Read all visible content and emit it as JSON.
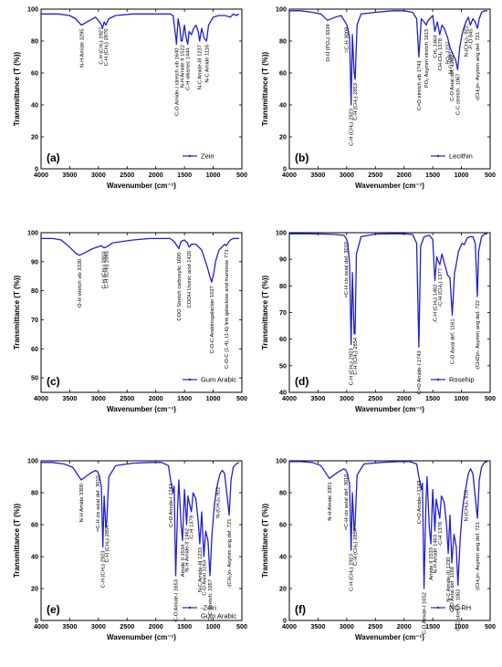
{
  "chart_data": [
    {
      "type": "line",
      "panel_label": "(a)",
      "legend": [
        "Zein"
      ],
      "xlabel": "Wavenumber (cm⁻¹)",
      "ylabel": "Transmittance (T (%))",
      "xlim": [
        4000,
        500
      ],
      "ylim": [
        0,
        100
      ],
      "xticks": [
        4000,
        3500,
        3000,
        2500,
        2000,
        1500,
        1000,
        500
      ],
      "yticks": [
        0,
        20,
        40,
        60,
        80,
        100
      ],
      "series": [
        {
          "name": "Zein",
          "x": [
            4000,
            3700,
            3500,
            3400,
            3295,
            3150,
            3050,
            2960,
            2927,
            2900,
            2870,
            2820,
            2700,
            2400,
            2100,
            1900,
            1750,
            1700,
            1650,
            1640,
            1610,
            1580,
            1560,
            1540,
            1520,
            1500,
            1480,
            1460,
            1444,
            1420,
            1380,
            1340,
            1300,
            1260,
            1237,
            1200,
            1160,
            1116,
            1080,
            1000,
            900,
            800,
            700,
            650,
            600,
            550
          ],
          "y": [
            97,
            97,
            96,
            94,
            90,
            93,
            95,
            91,
            88,
            92,
            90,
            94,
            96,
            97,
            97,
            97,
            97,
            96,
            82,
            78,
            94,
            88,
            80,
            80,
            86,
            90,
            84,
            80,
            78,
            86,
            84,
            88,
            90,
            86,
            80,
            88,
            82,
            80,
            90,
            95,
            96,
            96,
            95,
            97,
            96,
            97
          ]
        }
      ],
      "annotations": [
        {
          "text": "N-H Amide 3295",
          "x": 3295
        },
        {
          "text": "C-H (CH₂) 2927",
          "x": 2960
        },
        {
          "text": "C-H (CH₂) 2870",
          "x": 2870
        },
        {
          "text": "C-O Amide-I stretch vib 1640",
          "x": 1640
        },
        {
          "text": "N-H Amide II 1522",
          "x": 1540
        },
        {
          "text": "C-H alkanes 1444",
          "x": 1444
        },
        {
          "text": "N-C Amide-III 1237",
          "x": 1237
        },
        {
          "text": "N-C Amide 1116",
          "x": 1116
        }
      ]
    },
    {
      "type": "line",
      "panel_label": "(b)",
      "legend": [
        "Lecithin"
      ],
      "xlabel": "Wavenumber (cm⁻¹)",
      "ylabel": "Transmittance (T (%))",
      "xlim": [
        4000,
        500
      ],
      "ylim": [
        0,
        100
      ],
      "xticks": [
        4000,
        3500,
        3000,
        2500,
        2000,
        1500,
        1000,
        500
      ],
      "yticks": [
        0,
        20,
        40,
        60,
        80,
        100
      ],
      "series": [
        {
          "name": "Lecithin",
          "x": [
            4000,
            3800,
            3600,
            3450,
            3334,
            3200,
            3100,
            3009,
            2980,
            2950,
            2923,
            2900,
            2870,
            2853,
            2820,
            2750,
            2500,
            2200,
            2000,
            1850,
            1780,
            1743,
            1700,
            1650,
            1615,
            1580,
            1500,
            1464,
            1420,
            1378,
            1340,
            1300,
            1240,
            1200,
            1150,
            1100,
            1067,
            1030,
            990,
            960,
            922,
            880,
            845,
            800,
            760,
            721,
            690,
            650,
            600,
            550
          ],
          "y": [
            99,
            99,
            98,
            97,
            93,
            95,
            96,
            91,
            88,
            82,
            40,
            84,
            60,
            56,
            90,
            97,
            98,
            99,
            99,
            98,
            94,
            70,
            94,
            92,
            90,
            93,
            96,
            86,
            92,
            84,
            90,
            88,
            82,
            76,
            72,
            68,
            62,
            76,
            84,
            88,
            92,
            95,
            90,
            94,
            92,
            88,
            94,
            98,
            99,
            99
          ]
        }
      ],
      "annotations": [
        {
          "text": "O-H (PO₄) 3334",
          "x": 3334
        },
        {
          "text": "=C-H 3009",
          "x": 3009
        },
        {
          "text": "C-H (CH₂) 2923",
          "x": 2923
        },
        {
          "text": "C-H (CH₂) 2853",
          "x": 2853
        },
        {
          "text": "C=O stretch vib 1743",
          "x": 1743
        },
        {
          "text": "PO₂ Asymm stretch 1615",
          "x": 1615
        },
        {
          "text": "CH₂ 1464",
          "x": 1464
        },
        {
          "text": "CH-CH₃ 1378",
          "x": 1378
        },
        {
          "text": "PO₂ 1237",
          "x": 1240
        },
        {
          "text": "N-C 1195",
          "x": 1195
        },
        {
          "text": "C-O Axial def. 1165",
          "x": 1165
        },
        {
          "text": "C-C stretch. 1067",
          "x": 1067
        },
        {
          "text": "N-(CH₃)₃ 922",
          "x": 922
        },
        {
          "text": "-P-O 845",
          "x": 845
        },
        {
          "text": "-(CH₂)n- Asymm ang def. 721",
          "x": 721
        }
      ]
    },
    {
      "type": "line",
      "panel_label": "(c)",
      "legend": [
        "Gum Arabic"
      ],
      "xlabel": "Wavenumber (cm⁻¹)",
      "ylabel": "Transmittance (T (%))",
      "xlim": [
        4000,
        500
      ],
      "ylim": [
        45,
        100
      ],
      "xticks": [
        4000,
        3500,
        3000,
        2500,
        2000,
        1500,
        1000,
        500
      ],
      "yticks": [
        50,
        60,
        70,
        80,
        90,
        100
      ],
      "series": [
        {
          "name": "Gum Arabic",
          "x": [
            4000,
            3800,
            3650,
            3500,
            3400,
            3330,
            3250,
            3100,
            2950,
            2910,
            2865,
            2750,
            2400,
            2100,
            1900,
            1750,
            1680,
            1600,
            1560,
            1500,
            1450,
            1420,
            1380,
            1300,
            1200,
            1150,
            1100,
            1060,
            1027,
            990,
            960,
            900,
            850,
            800,
            771,
            740,
            700,
            650,
            600,
            550
          ],
          "y": [
            98,
            98,
            97.5,
            95,
            93,
            92.2,
            93,
            94.5,
            95.5,
            94.8,
            95,
            96.5,
            97.5,
            98,
            98,
            98,
            97,
            94.5,
            97,
            97.5,
            96.5,
            95,
            96,
            96,
            94,
            91,
            88,
            85,
            83,
            86,
            90,
            94,
            95,
            96,
            95.5,
            96.5,
            97.5,
            98,
            98,
            98
          ]
        }
      ],
      "annotations": [
        {
          "text": "O-H stretch vib 3330",
          "x": 3330
        },
        {
          "text": "C-H (CH₂) 2910",
          "x": 2910
        },
        {
          "text": "C-H (CH₂) 2865",
          "x": 2865
        },
        {
          "text": "COO Stretch carboxylic 1600",
          "x": 1600
        },
        {
          "text": "COOH Uronic acid 1420",
          "x": 1420
        },
        {
          "text": "C-O-C Arabinogalactan 1027",
          "x": 1027
        },
        {
          "text": "C-O-C (1-4), (1-6) link galactose and mannose 771",
          "x": 771
        }
      ]
    },
    {
      "type": "line",
      "panel_label": "(d)",
      "legend": [
        "Rosehip"
      ],
      "xlabel": "Wavenumber (cm⁻¹)",
      "ylabel": "Transmittance (T (%))",
      "xlim": [
        4000,
        500
      ],
      "ylim": [
        40,
        100
      ],
      "xticks": [
        4000,
        3500,
        3000,
        2500,
        2000,
        1500,
        1000,
        500
      ],
      "yticks": [
        40,
        50,
        60,
        70,
        80,
        90,
        100
      ],
      "series": [
        {
          "name": "Rosehip",
          "x": [
            4000,
            3700,
            3400,
            3200,
            3050,
            3010,
            2980,
            2950,
            2923,
            2900,
            2870,
            2854,
            2830,
            2750,
            2500,
            2200,
            2000,
            1850,
            1780,
            1743,
            1710,
            1650,
            1560,
            1500,
            1462,
            1430,
            1400,
            1377,
            1340,
            1290,
            1240,
            1200,
            1161,
            1120,
            1100,
            1050,
            990,
            950,
            900,
            850,
            800,
            760,
            722,
            700,
            650,
            600,
            550
          ],
          "y": [
            99.6,
            99.6,
            99.5,
            99.3,
            99,
            98,
            96,
            88,
            58,
            85,
            62,
            62,
            92,
            98.5,
            99.5,
            99.6,
            99.6,
            99.3,
            96,
            57,
            95,
            98.5,
            99,
            97.5,
            82,
            91,
            89,
            88,
            92,
            88,
            84,
            83,
            69,
            85,
            87,
            93,
            96,
            95.5,
            98,
            98.5,
            98.5,
            96,
            76,
            93,
            98.5,
            99.5,
            99.6
          ]
        }
      ],
      "annotations": [
        {
          "text": "=C-H cis axial def. 3010",
          "x": 3010
        },
        {
          "text": "C-H (CH₂) 2923",
          "x": 2923
        },
        {
          "text": "C-H (CH₂) 2854",
          "x": 2854
        },
        {
          "text": "C=O Amide-I 1743",
          "x": 1743
        },
        {
          "text": "-C-H (CH₂) 1462",
          "x": 1462
        },
        {
          "text": "-C-H (CH₂) 1377",
          "x": 1377
        },
        {
          "text": "C-O Axial def. 1161",
          "x": 1161
        },
        {
          "text": "-(CH2)n- Asymm ang def. 722",
          "x": 722
        }
      ]
    },
    {
      "type": "line",
      "panel_label": "(e)",
      "legend": [
        "-Zein",
        "Gum Arabic"
      ],
      "xlabel": "Wavenumber (cm⁻¹)",
      "ylabel": "Transmittance (T (%))",
      "xlim": [
        4000,
        500
      ],
      "ylim": [
        0,
        100
      ],
      "xticks": [
        4000,
        3500,
        3000,
        2500,
        2000,
        1500,
        1000,
        500
      ],
      "yticks": [
        0,
        20,
        40,
        60,
        80,
        100
      ],
      "series": [
        {
          "name": "-Zein Gum Arabic",
          "x": [
            4000,
            3800,
            3600,
            3450,
            3300,
            3150,
            3050,
            3010,
            2980,
            2950,
            2923,
            2900,
            2870,
            2854,
            2820,
            2700,
            2400,
            2100,
            1900,
            1780,
            1743,
            1700,
            1680,
            1653,
            1620,
            1600,
            1560,
            1534,
            1500,
            1480,
            1462,
            1440,
            1420,
            1379,
            1350,
            1300,
            1260,
            1233,
            1200,
            1163,
            1130,
            1090,
            1057,
            1020,
            980,
            950,
            922,
            880,
            840,
            800,
            721,
            690,
            650,
            600,
            550
          ],
          "y": [
            99,
            99,
            98,
            96,
            88,
            92,
            94,
            93,
            90,
            84,
            46,
            78,
            58,
            62,
            90,
            97,
            98.5,
            99,
            99,
            97,
            88,
            80,
            84,
            28,
            70,
            88,
            60,
            50,
            82,
            70,
            60,
            78,
            74,
            68,
            80,
            76,
            62,
            48,
            68,
            40,
            56,
            50,
            28,
            54,
            72,
            80,
            86,
            92,
            94,
            92,
            66,
            88,
            96,
            98,
            99
          ]
        }
      ],
      "annotations": [
        {
          "text": "N-H Amide 3300",
          "x": 3300
        },
        {
          "text": "=C-H cis axial def. 3010",
          "x": 3010
        },
        {
          "text": "C-H (CH₂) 2923",
          "x": 2923
        },
        {
          "text": "C-H (CH₂) 2854",
          "x": 2854
        },
        {
          "text": "C=O Amide-I 1743",
          "x": 1743
        },
        {
          "text": "C-O Amide-I 1653",
          "x": 1653
        },
        {
          "text": "Amide II 1534",
          "x": 1534
        },
        {
          "text": "N-H Amide-II 1462",
          "x": 1462
        },
        {
          "text": "-C-H 1379",
          "x": 1379
        },
        {
          "text": "N-C Amide-III 1233",
          "x": 1233
        },
        {
          "text": "C-O Axial 1163",
          "x": 1163
        },
        {
          "text": "C-C stretch. 1057",
          "x": 1057
        },
        {
          "text": "N-(CH₃)₃ 922",
          "x": 922
        },
        {
          "text": "-(CH₂)n- Asymm ang def. 721",
          "x": 721
        }
      ]
    },
    {
      "type": "line",
      "panel_label": "(f)",
      "legend": [
        "NC-RH"
      ],
      "xlabel": "Wavenumber (cm⁻¹)",
      "ylabel": "Transmittance (T (%))",
      "xlim": [
        4000,
        500
      ],
      "ylim": [
        0,
        100
      ],
      "xticks": [
        4000,
        3500,
        3000,
        2500,
        2000,
        1500,
        1000,
        500
      ],
      "yticks": [
        0,
        20,
        40,
        60,
        80,
        100
      ],
      "series": [
        {
          "name": "NC-RH",
          "x": [
            4000,
            3800,
            3600,
            3450,
            3301,
            3150,
            3050,
            3010,
            2980,
            2950,
            2923,
            2900,
            2870,
            2854,
            2820,
            2700,
            2400,
            2100,
            1900,
            1780,
            1743,
            1700,
            1680,
            1652,
            1620,
            1600,
            1560,
            1533,
            1500,
            1480,
            1463,
            1440,
            1420,
            1378,
            1350,
            1300,
            1260,
            1230,
            1200,
            1168,
            1130,
            1090,
            1062,
            1020,
            980,
            950,
            918,
            880,
            840,
            800,
            721,
            690,
            650,
            600,
            550
          ],
          "y": [
            99.5,
            99.5,
            99,
            97,
            89,
            93,
            95,
            94,
            91,
            85,
            44,
            80,
            56,
            60,
            91,
            98,
            99,
            99.5,
            99.5,
            98,
            90,
            82,
            86,
            20,
            72,
            90,
            58,
            48,
            82,
            68,
            56,
            76,
            72,
            64,
            78,
            74,
            60,
            42,
            66,
            36,
            54,
            46,
            22,
            52,
            70,
            78,
            84,
            92,
            95,
            92,
            64,
            88,
            96,
            99,
            99.5
          ]
        }
      ],
      "annotations": [
        {
          "text": "N-H Amide 3301",
          "x": 3301
        },
        {
          "text": "=C-H cis axial def. 3010",
          "x": 3010
        },
        {
          "text": "C-H (CH₂) 2923",
          "x": 2923
        },
        {
          "text": "C-H (CH₂) 2854",
          "x": 2854
        },
        {
          "text": "C=O Amide-I 1743",
          "x": 1743
        },
        {
          "text": "C-O Amide-I 1652",
          "x": 1652
        },
        {
          "text": "Amide II 1533",
          "x": 1533
        },
        {
          "text": "N-H Amide 1463",
          "x": 1463
        },
        {
          "text": "-C-H 1378",
          "x": 1378
        },
        {
          "text": "N-C Amide-III 1230",
          "x": 1230
        },
        {
          "text": "C-O Axial def. 1168",
          "x": 1168
        },
        {
          "text": "C-C stretch. 1062",
          "x": 1062
        },
        {
          "text": "N-(CH₃)₃ 918",
          "x": 918
        },
        {
          "text": "-(CH₂)n- Asymm ang def. 721",
          "x": 721
        }
      ]
    }
  ],
  "colors": {
    "line": "#1f1fd6",
    "axis": "#000000"
  }
}
